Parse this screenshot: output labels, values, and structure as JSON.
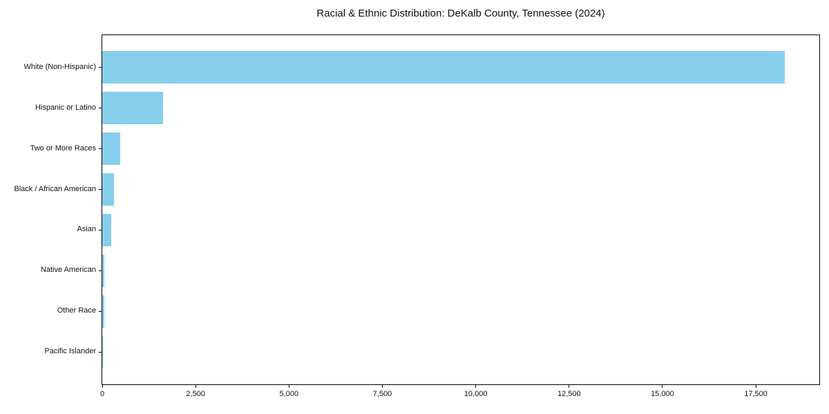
{
  "title": "Racial & Ethnic Distribution: DeKalb County, Tennessee (2024)",
  "colors": {
    "bar": "#87CEEB",
    "axis": "#000000",
    "background": "#FFFFFF",
    "text": "#111111"
  },
  "chart_data": {
    "type": "bar",
    "orientation": "horizontal",
    "title": "Racial & Ethnic Distribution: DeKalb County, Tennessee (2024)",
    "categories": [
      "White (Non-Hispanic)",
      "Hispanic or Latino",
      "Two or More Races",
      "Black / African American",
      "Asian",
      "Native American",
      "Other Race",
      "Pacific Islander"
    ],
    "values": [
      18270,
      1620,
      480,
      320,
      235,
      60,
      50,
      5
    ],
    "bar_color": "#87CEEB",
    "xlabel": "",
    "ylabel": "",
    "xlim": [
      0,
      19200
    ],
    "x_ticks": [
      0,
      2500,
      5000,
      7500,
      10000,
      12500,
      15000,
      17500
    ],
    "x_tick_labels": [
      "0",
      "2,500",
      "5,000",
      "7,500",
      "10,000",
      "12,500",
      "15,000",
      "17,500"
    ],
    "grid": false,
    "legend": null
  }
}
